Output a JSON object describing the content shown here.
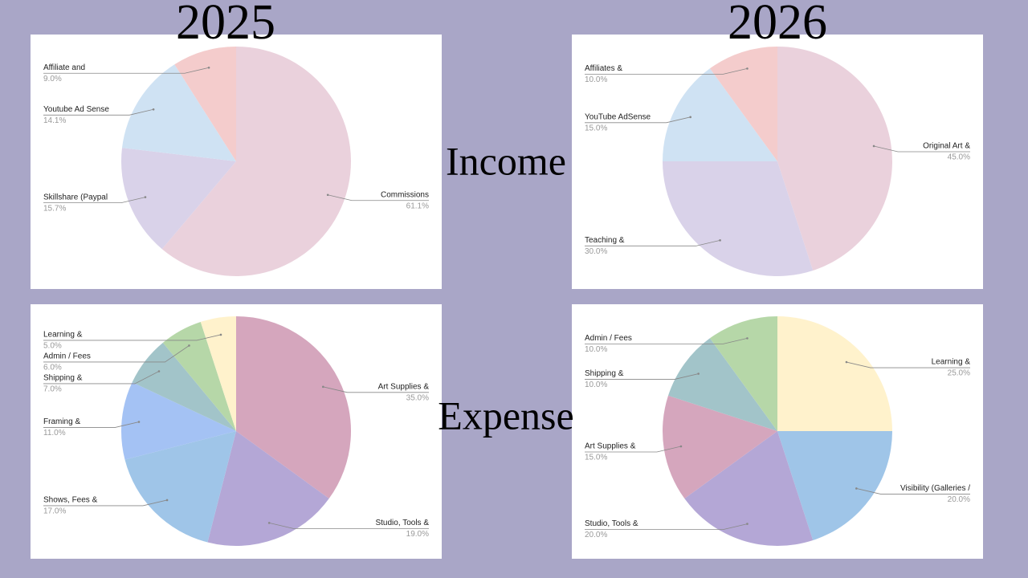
{
  "slide": {
    "years": [
      "2025",
      "2026"
    ],
    "rows": [
      "Income",
      "Expense"
    ]
  },
  "chart_data": [
    {
      "type": "pie",
      "categories": [
        "Commissions",
        "Skillshare (Paypal",
        "Youtube Ad Sense",
        "Affiliate and"
      ],
      "values": [
        61.1,
        15.7,
        14.1,
        9.0
      ],
      "value_labels": [
        "61.1%",
        "15.7%",
        "14.1%",
        "9.0%"
      ],
      "colors": [
        "#ead1dc",
        "#d9d2e9",
        "#cfe2f3",
        "#f4cccc"
      ]
    },
    {
      "type": "pie",
      "categories": [
        "Original Art &",
        "Teaching &",
        "YouTube AdSense",
        "Affiliates &"
      ],
      "values": [
        45.0,
        30.0,
        15.0,
        10.0
      ],
      "value_labels": [
        "45.0%",
        "30.0%",
        "15.0%",
        "10.0%"
      ],
      "colors": [
        "#ead1dc",
        "#d9d2e9",
        "#cfe2f3",
        "#f4cccc"
      ]
    },
    {
      "type": "pie",
      "categories": [
        "Art Supplies &",
        "Studio, Tools &",
        "Shows, Fees &",
        "Framing &",
        "Shipping &",
        "Admin / Fees",
        "Learning &"
      ],
      "values": [
        35.0,
        19.0,
        17.0,
        11.0,
        7.0,
        6.0,
        5.0
      ],
      "value_labels": [
        "35.0%",
        "19.0%",
        "17.0%",
        "11.0%",
        "7.0%",
        "6.0%",
        "5.0%"
      ],
      "colors": [
        "#d5a6bd",
        "#b4a7d6",
        "#9fc5e8",
        "#a4c2f4",
        "#a2c4c9",
        "#b6d7a8",
        "#fff2cc"
      ]
    },
    {
      "type": "pie",
      "categories": [
        "Learning &",
        "Visibility (Galleries /",
        "Studio, Tools &",
        "Art Supplies &",
        "Shipping &",
        "Admin / Fees"
      ],
      "values": [
        25.0,
        20.0,
        20.0,
        15.0,
        10.0,
        10.0
      ],
      "value_labels": [
        "25.0%",
        "20.0%",
        "20.0%",
        "15.0%",
        "10.0%",
        "10.0%"
      ],
      "colors": [
        "#fff2cc",
        "#9fc5e8",
        "#b4a7d6",
        "#d5a6bd",
        "#a2c4c9",
        "#b6d7a8"
      ]
    }
  ]
}
